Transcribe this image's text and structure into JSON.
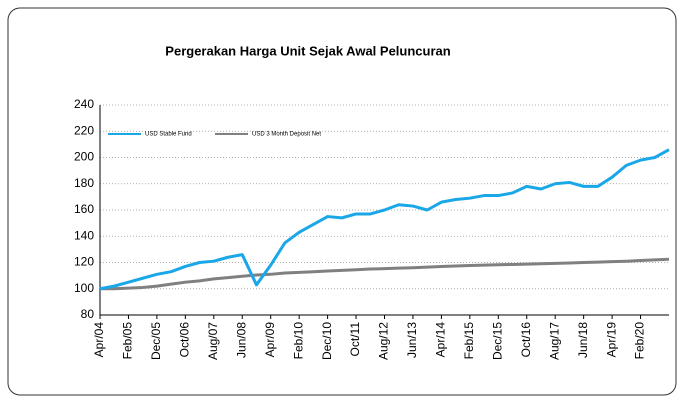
{
  "chart_data": {
    "type": "line",
    "title": "Pergerakan Harga Unit Sejak Awal Peluncuran",
    "categories": [
      "Apr/04",
      null,
      "Feb/05",
      null,
      "Dec/05",
      null,
      "Oct/06",
      null,
      "Aug/07",
      null,
      "Jun/08",
      null,
      "Apr/09",
      null,
      "Feb/10",
      null,
      "Dec/10",
      null,
      "Oct/11",
      null,
      "Aug/12",
      null,
      "Jun/13",
      null,
      "Apr/14",
      null,
      "Feb/15",
      null,
      "Dec/15",
      null,
      "Oct/16",
      null,
      "Aug/17",
      null,
      "Jun/18",
      null,
      "Apr/19",
      null,
      "Feb/20",
      null,
      null
    ],
    "series": [
      {
        "name": "USD Stable Fund",
        "color": "#1aa7e8",
        "values": [
          100,
          102,
          105,
          108,
          111,
          113,
          117,
          120,
          121,
          124,
          126,
          103,
          118,
          135,
          143,
          149,
          155,
          154,
          157,
          157,
          160,
          164,
          163,
          160,
          166,
          168,
          169,
          171,
          171,
          173,
          178,
          176,
          180,
          181,
          178,
          178,
          185,
          194,
          198,
          200,
          206
        ]
      },
      {
        "name": "USD 3 Month Deposit Net",
        "color": "#808080",
        "values": [
          100,
          100,
          100.5,
          101,
          102,
          103.5,
          105,
          106,
          107.5,
          108.5,
          109.5,
          110.5,
          111,
          112,
          112.5,
          113,
          113.5,
          114,
          114.5,
          115,
          115.3,
          115.7,
          116,
          116.5,
          117,
          117.3,
          117.7,
          118,
          118.3,
          118.5,
          118.8,
          119,
          119.3,
          119.6,
          120,
          120.3,
          120.7,
          121,
          121.5,
          122,
          122.5
        ]
      }
    ],
    "ylim": [
      80,
      240
    ],
    "yticks": [
      80,
      100,
      120,
      140,
      160,
      180,
      200,
      220,
      240
    ],
    "grid": true
  }
}
